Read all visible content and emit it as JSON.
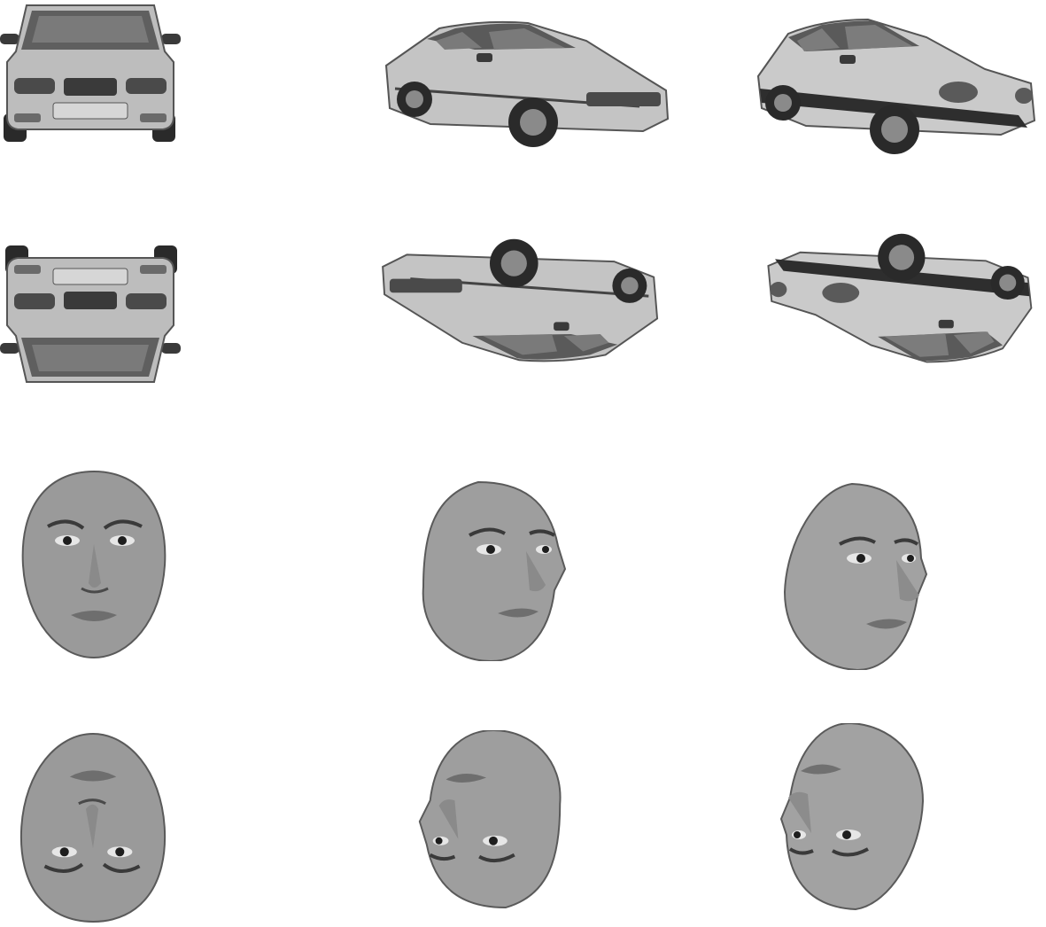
{
  "figure": {
    "rows": [
      {
        "subject": "car",
        "orientation": "upright",
        "views": [
          "front-view",
          "three-quarter-view",
          "three-quarter-view"
        ]
      },
      {
        "subject": "car",
        "orientation": "inverted",
        "views": [
          "front-view",
          "three-quarter-view",
          "three-quarter-view"
        ]
      },
      {
        "subject": "face",
        "orientation": "upright",
        "views": [
          "front-view",
          "three-quarter-view",
          "three-quarter-view"
        ]
      },
      {
        "subject": "face",
        "orientation": "inverted",
        "views": [
          "front-view",
          "three-quarter-view",
          "three-quarter-view"
        ]
      }
    ],
    "colors": {
      "background": "#ffffff",
      "car_body": "#bdbdbd",
      "car_dark": "#3a3a3a",
      "glass": "#6e6e6e",
      "skin": "#9a9a9a"
    }
  }
}
